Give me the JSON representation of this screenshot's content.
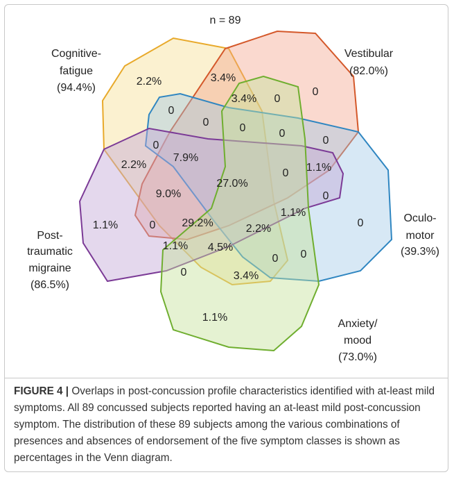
{
  "diagram": {
    "n_label": "n = 89",
    "sets": [
      {
        "lines": [
          "Cognitive-",
          "fatigue",
          "(94.4%)"
        ]
      },
      {
        "lines": [
          "Vestibular",
          "(82.0%)"
        ]
      },
      {
        "lines": [
          "Oculo-",
          "motor",
          "(39.3%)"
        ]
      },
      {
        "lines": [
          "Post-",
          "traumatic",
          "migraine",
          "(86.5%)"
        ]
      },
      {
        "lines": [
          "Anxiety/",
          "mood",
          "(73.0%)"
        ]
      }
    ],
    "regions": [
      "2.2%",
      "3.4%",
      "0",
      "3.4%",
      "0",
      "0",
      "0",
      "0",
      "0",
      "0",
      "0",
      "7.9%",
      "2.2%",
      "1.1%",
      "0",
      "27.0%",
      "9.0%",
      "0",
      "1.1%",
      "1.1%",
      "0",
      "29.2%",
      "0",
      "2.2%",
      "1.1%",
      "4.5%",
      "0",
      "0",
      "0",
      "3.4%",
      "1.1%"
    ]
  },
  "caption": {
    "label": "FIGURE 4 |",
    "text": "Overlaps in post-concussion profile characteristics identified with at-least mild symptoms. All 89 concussed subjects reported having an at-least mild post-concussion symptom. The distribution of these 89 subjects among the various combinations of presences and absences of endorsement of the five symptom classes is shown as percentages in the Venn diagram."
  }
}
